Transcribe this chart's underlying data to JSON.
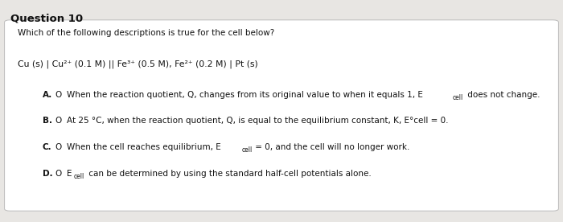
{
  "title": "Question 10",
  "question": "Which of the following descriptions is true for the cell below?",
  "cell_notation": "Cu (s) | Cu²⁺ (0.1 M) || Fe³⁺ (0.5 M), Fe²⁺ (0.2 M) | Pt (s)",
  "opt_a_text": "When the reaction quotient, Q, changes from its original value to when it equals 1, E",
  "opt_a_sub": "cell",
  "opt_a_end": " does not change.",
  "opt_b_text": "At 25 °C, when the reaction quotient, Q, is equal to the equilibrium constant, K, E°cell = 0.",
  "opt_c_pre": "When the cell reaches equilibrium, E",
  "opt_c_sub": "cell",
  "opt_c_end": " = 0, and the cell will no longer work.",
  "opt_d_pre": "E",
  "opt_d_sub": "cell",
  "opt_d_end": " can be determined by using the standard half-cell potentials alone.",
  "bg_color": "#e8e6e3",
  "card_color": "#ffffff",
  "title_color": "#000000",
  "text_color": "#111111",
  "title_fontsize": 9.5,
  "body_fontsize": 7.5,
  "cell_fontsize": 7.8
}
